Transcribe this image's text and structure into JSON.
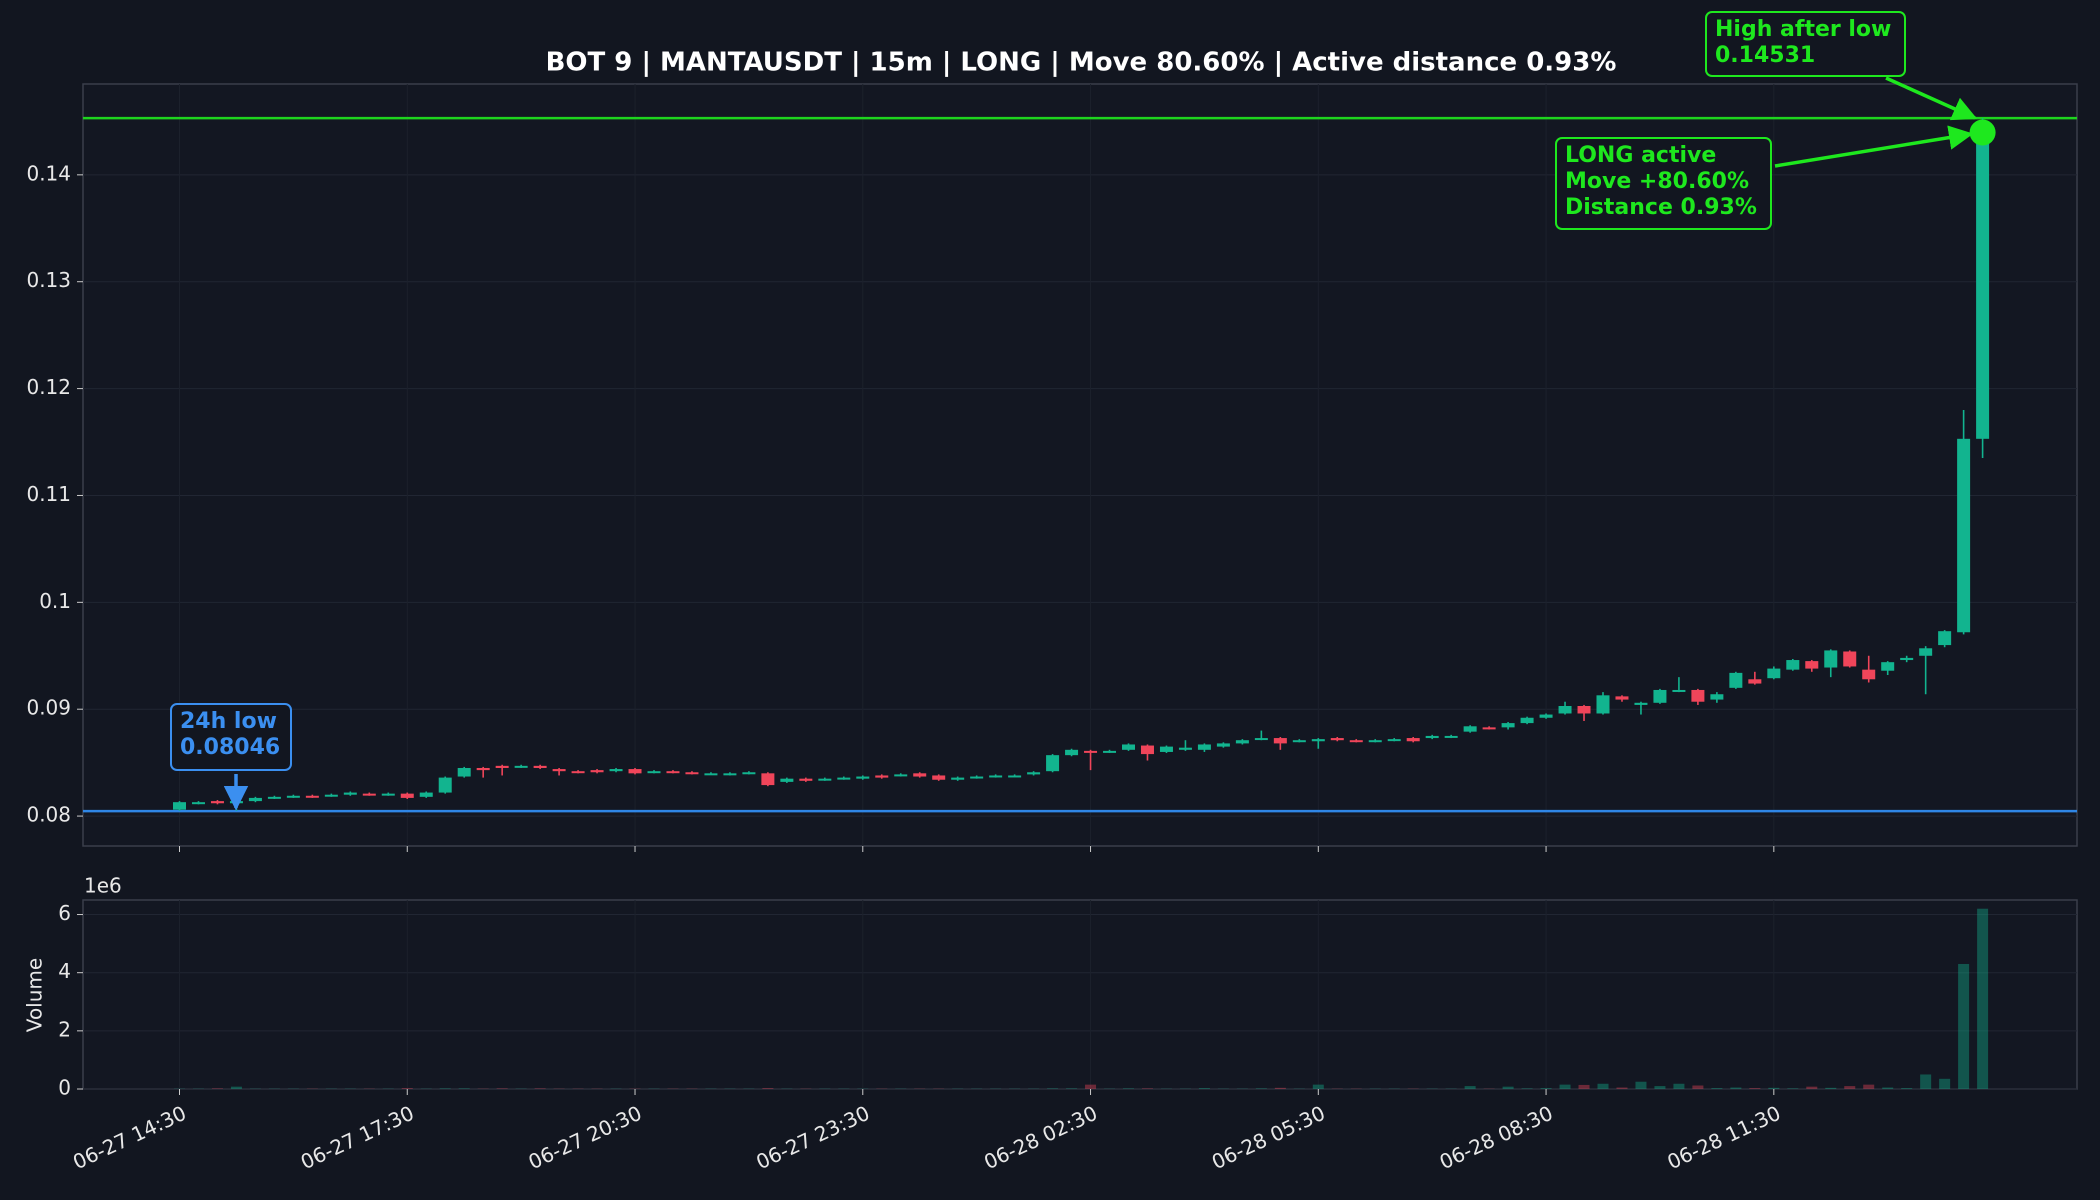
{
  "chart_data": {
    "type": "candlestick",
    "title": "BOT 9 | MANTAUSDT | 15m | LONG | Move 80.60% | Active distance 0.93%",
    "x": [
      "06-27 14:30",
      "06-27 14:45",
      "06-27 15:00",
      "06-27 15:15",
      "06-27 15:30",
      "06-27 15:45",
      "06-27 16:00",
      "06-27 16:15",
      "06-27 16:30",
      "06-27 16:45",
      "06-27 17:00",
      "06-27 17:15",
      "06-27 17:30",
      "06-27 17:45",
      "06-27 18:00",
      "06-27 18:15",
      "06-27 18:30",
      "06-27 18:45",
      "06-27 19:00",
      "06-27 19:15",
      "06-27 19:30",
      "06-27 19:45",
      "06-27 20:00",
      "06-27 20:15",
      "06-27 20:30",
      "06-27 20:45",
      "06-27 21:00",
      "06-27 21:15",
      "06-27 21:30",
      "06-27 21:45",
      "06-27 22:00",
      "06-27 22:15",
      "06-27 22:30",
      "06-27 22:45",
      "06-27 23:00",
      "06-27 23:15",
      "06-27 23:30",
      "06-27 23:45",
      "06-28 00:00",
      "06-28 00:15",
      "06-28 00:30",
      "06-28 00:45",
      "06-28 01:00",
      "06-28 01:15",
      "06-28 01:30",
      "06-28 01:45",
      "06-28 02:00",
      "06-28 02:15",
      "06-28 02:30",
      "06-28 02:45",
      "06-28 03:00",
      "06-28 03:15",
      "06-28 03:30",
      "06-28 03:45",
      "06-28 04:00",
      "06-28 04:15",
      "06-28 04:30",
      "06-28 04:45",
      "06-28 05:00",
      "06-28 05:15",
      "06-28 05:30",
      "06-28 05:45",
      "06-28 06:00",
      "06-28 06:15",
      "06-28 06:30",
      "06-28 06:45",
      "06-28 07:00",
      "06-28 07:15",
      "06-28 07:30",
      "06-28 07:45",
      "06-28 08:00",
      "06-28 08:15",
      "06-28 08:30",
      "06-28 08:45",
      "06-28 09:00",
      "06-28 09:15",
      "06-28 09:30",
      "06-28 09:45",
      "06-28 10:00",
      "06-28 10:15",
      "06-28 10:30",
      "06-28 10:45",
      "06-28 11:00",
      "06-28 11:15",
      "06-28 11:30",
      "06-28 11:45",
      "06-28 12:00",
      "06-28 12:15",
      "06-28 12:30",
      "06-28 12:45",
      "06-28 13:00",
      "06-28 13:15",
      "06-28 13:30",
      "06-28 13:45",
      "06-28 14:00",
      "06-28 14:15"
    ],
    "open": [
      0.0806,
      0.0812,
      0.0814,
      0.0812,
      0.0814,
      0.0817,
      0.0818,
      0.0819,
      0.0819,
      0.082,
      0.0821,
      0.082,
      0.0821,
      0.0818,
      0.0822,
      0.0837,
      0.0845,
      0.0847,
      0.0846,
      0.0847,
      0.0844,
      0.0842,
      0.0843,
      0.0842,
      0.0844,
      0.0841,
      0.0842,
      0.0841,
      0.084,
      0.0839,
      0.084,
      0.084,
      0.0832,
      0.0835,
      0.0834,
      0.0835,
      0.0835,
      0.0838,
      0.0838,
      0.084,
      0.0838,
      0.0834,
      0.0836,
      0.0837,
      0.0838,
      0.0839,
      0.0842,
      0.0857,
      0.0861,
      0.086,
      0.0862,
      0.0866,
      0.086,
      0.0862,
      0.0862,
      0.0865,
      0.0868,
      0.0872,
      0.0873,
      0.087,
      0.087,
      0.0873,
      0.0871,
      0.087,
      0.0871,
      0.0873,
      0.0873,
      0.0874,
      0.0879,
      0.0883,
      0.0883,
      0.0887,
      0.0892,
      0.0896,
      0.0903,
      0.0896,
      0.0912,
      0.0904,
      0.0906,
      0.0917,
      0.0918,
      0.0909,
      0.092,
      0.0928,
      0.0929,
      0.0937,
      0.0945,
      0.0939,
      0.0954,
      0.0937,
      0.0936,
      0.0946,
      0.095,
      0.096,
      0.0972,
      0.1153
    ],
    "high": [
      0.0814,
      0.0814,
      0.0815,
      0.0815,
      0.0818,
      0.0819,
      0.082,
      0.082,
      0.0821,
      0.0823,
      0.0822,
      0.0822,
      0.0822,
      0.0823,
      0.0837,
      0.0846,
      0.0846,
      0.0848,
      0.0848,
      0.0848,
      0.0845,
      0.0843,
      0.0844,
      0.0845,
      0.0845,
      0.0843,
      0.0843,
      0.0842,
      0.0841,
      0.0841,
      0.0842,
      0.0841,
      0.0836,
      0.0836,
      0.0836,
      0.0837,
      0.0838,
      0.0839,
      0.084,
      0.0841,
      0.0839,
      0.0837,
      0.0838,
      0.0839,
      0.0839,
      0.0842,
      0.0858,
      0.0863,
      0.0862,
      0.0862,
      0.0868,
      0.0867,
      0.0866,
      0.0871,
      0.0868,
      0.0869,
      0.0872,
      0.088,
      0.0874,
      0.0872,
      0.0873,
      0.0874,
      0.0872,
      0.0872,
      0.0873,
      0.0874,
      0.0876,
      0.0876,
      0.0885,
      0.0884,
      0.0888,
      0.0893,
      0.0896,
      0.0907,
      0.0904,
      0.0916,
      0.0913,
      0.0907,
      0.0919,
      0.093,
      0.0919,
      0.0916,
      0.0935,
      0.0935,
      0.094,
      0.0947,
      0.0946,
      0.0956,
      0.0955,
      0.095,
      0.0945,
      0.095,
      0.0959,
      0.0974,
      0.118,
      0.14531
    ],
    "low": [
      0.0805,
      0.0811,
      0.0811,
      0.0805,
      0.0813,
      0.0816,
      0.0817,
      0.0817,
      0.0818,
      0.0819,
      0.0819,
      0.0819,
      0.0816,
      0.0817,
      0.0821,
      0.0836,
      0.0836,
      0.0838,
      0.0845,
      0.0844,
      0.0838,
      0.084,
      0.084,
      0.0841,
      0.0839,
      0.084,
      0.084,
      0.0839,
      0.0839,
      0.0838,
      0.0839,
      0.0828,
      0.0831,
      0.0832,
      0.0833,
      0.0834,
      0.0834,
      0.0835,
      0.0837,
      0.0836,
      0.0833,
      0.0833,
      0.0835,
      0.0836,
      0.0837,
      0.0838,
      0.0841,
      0.0856,
      0.0843,
      0.0859,
      0.0861,
      0.0852,
      0.0859,
      0.0861,
      0.086,
      0.0864,
      0.0867,
      0.0871,
      0.0862,
      0.0869,
      0.0863,
      0.087,
      0.0869,
      0.0869,
      0.087,
      0.0869,
      0.0872,
      0.0873,
      0.0878,
      0.0881,
      0.0881,
      0.0886,
      0.0891,
      0.0895,
      0.0889,
      0.0895,
      0.0907,
      0.0895,
      0.0905,
      0.0916,
      0.0904,
      0.0906,
      0.0919,
      0.0923,
      0.0928,
      0.0936,
      0.0935,
      0.093,
      0.0939,
      0.0925,
      0.0932,
      0.0944,
      0.0914,
      0.0958,
      0.097,
      0.1135
    ],
    "close": [
      0.0813,
      0.0813,
      0.0812,
      0.0814,
      0.0817,
      0.0818,
      0.0819,
      0.0818,
      0.082,
      0.0822,
      0.082,
      0.0821,
      0.0817,
      0.0822,
      0.0836,
      0.0845,
      0.0843,
      0.0845,
      0.0847,
      0.0845,
      0.0842,
      0.0841,
      0.0841,
      0.0844,
      0.084,
      0.0842,
      0.0841,
      0.084,
      0.084,
      0.084,
      0.0841,
      0.0829,
      0.0835,
      0.0833,
      0.0835,
      0.0836,
      0.0837,
      0.0836,
      0.0839,
      0.0837,
      0.0834,
      0.0836,
      0.0837,
      0.0838,
      0.0838,
      0.0841,
      0.0857,
      0.0862,
      0.086,
      0.0861,
      0.0867,
      0.0858,
      0.0865,
      0.0864,
      0.0867,
      0.0868,
      0.0871,
      0.0873,
      0.0868,
      0.0871,
      0.0872,
      0.0871,
      0.087,
      0.0871,
      0.0872,
      0.087,
      0.0875,
      0.0875,
      0.0884,
      0.0882,
      0.0887,
      0.0892,
      0.0895,
      0.0903,
      0.0896,
      0.0913,
      0.0909,
      0.0906,
      0.0918,
      0.0918,
      0.0907,
      0.0914,
      0.0934,
      0.0924,
      0.0938,
      0.0946,
      0.0938,
      0.0955,
      0.094,
      0.0928,
      0.0944,
      0.0948,
      0.0957,
      0.0973,
      0.1153,
      0.144
    ],
    "up_color": "#12b48f",
    "down_color": "#f0455a",
    "ylim": [
      0.0772,
      0.1485
    ],
    "yticks": [
      0.08,
      0.09,
      0.1,
      0.11,
      0.12,
      0.13,
      0.14
    ],
    "xticks": [
      "06-27 14:30",
      "06-27 17:30",
      "06-27 20:30",
      "06-27 23:30",
      "06-28 02:30",
      "06-28 05:30",
      "06-28 08:30",
      "06-28 11:30"
    ],
    "grid": true,
    "levels": [
      {
        "value": 0.14531,
        "color": "#1ed41e"
      },
      {
        "value": 0.08046,
        "color": "#2f86e6"
      }
    ],
    "current": 0.14396,
    "annotations": [
      {
        "lines": [
          "24h low",
          "0.08046"
        ],
        "color": "#3b8ff0"
      },
      {
        "lines": [
          "High after low",
          "0.14531"
        ],
        "color": "#1ee81e"
      },
      {
        "lines": [
          "LONG active",
          "Move +80.60%",
          "Distance 0.93%"
        ],
        "color": "#1ee81e"
      }
    ],
    "volume": {
      "ylabel": "Volume",
      "offset_label": "1e6",
      "ylim": [
        0,
        6.5
      ],
      "yticks": [
        0,
        2,
        4,
        6
      ],
      "values": [
        0.01,
        0.01,
        0.02,
        0.08,
        0.01,
        0.01,
        0.01,
        0.01,
        0.01,
        0.01,
        0.01,
        0.01,
        0.03,
        0.01,
        0.02,
        0.02,
        0.01,
        0.02,
        0.01,
        0.02,
        0.01,
        0.01,
        0.01,
        0.01,
        0.01,
        0.01,
        0.01,
        0.01,
        0.01,
        0.01,
        0.01,
        0.03,
        0.01,
        0.01,
        0.01,
        0.01,
        0.01,
        0.01,
        0.01,
        0.01,
        0.01,
        0.01,
        0.01,
        0.01,
        0.01,
        0.01,
        0.02,
        0.02,
        0.15,
        0.01,
        0.02,
        0.02,
        0.01,
        0.01,
        0.03,
        0.01,
        0.01,
        0.02,
        0.04,
        0.01,
        0.15,
        0.01,
        0.01,
        0.01,
        0.01,
        0.01,
        0.01,
        0.01,
        0.1,
        0.01,
        0.08,
        0.02,
        0.03,
        0.15,
        0.14,
        0.18,
        0.05,
        0.25,
        0.1,
        0.18,
        0.12,
        0.03,
        0.05,
        0.03,
        0.04,
        0.02,
        0.08,
        0.04,
        0.1,
        0.15,
        0.05,
        0.03,
        0.5,
        0.35,
        4.3,
        6.2
      ]
    }
  }
}
